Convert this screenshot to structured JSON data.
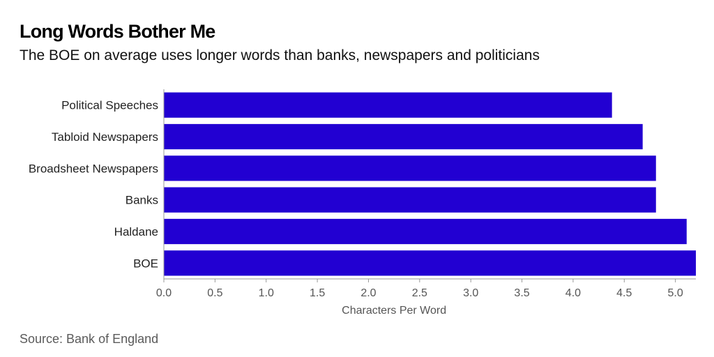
{
  "header": {
    "title": "Long Words Bother Me",
    "subtitle": "The BOE on average uses longer words than banks, newspapers and politicians"
  },
  "footer": {
    "source": "Source: Bank of England"
  },
  "colors": {
    "bar": "#2200d2",
    "axis": "#999999",
    "tick_text": "#555555"
  },
  "chart_data": {
    "type": "bar",
    "orientation": "horizontal",
    "title": "Long Words Bother Me",
    "subtitle": "The BOE on average uses longer words than banks, newspapers and politicians",
    "xlabel": "Characters Per Word",
    "ylabel": "",
    "categories": [
      "Political Speeches",
      "Tabloid Newspapers",
      "Broadsheet Newspapers",
      "Banks",
      "Haldane",
      "BOE"
    ],
    "values": [
      4.38,
      4.68,
      4.81,
      4.81,
      5.11,
      5.2
    ],
    "xlim": [
      0,
      5.2
    ],
    "xticks": [
      "0.0",
      "0.5",
      "1.0",
      "1.5",
      "2.0",
      "2.5",
      "3.0",
      "3.5",
      "4.0",
      "4.5",
      "5.0"
    ],
    "grid": false,
    "legend": "none"
  }
}
